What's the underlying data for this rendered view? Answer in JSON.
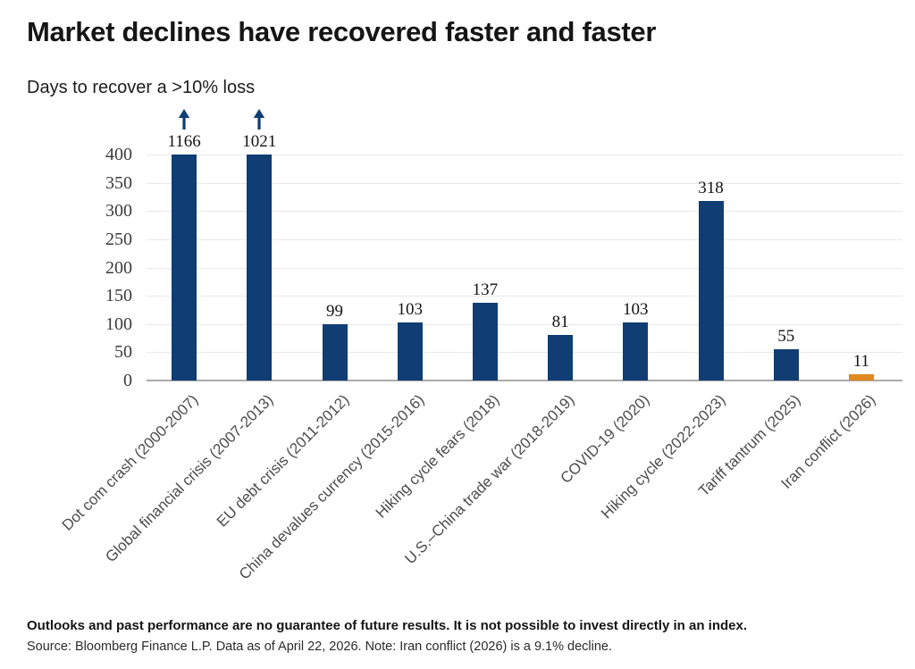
{
  "header": {
    "title": "Market declines have recovered faster and faster",
    "subtitle": "Days to recover a >10% loss"
  },
  "chart_data": {
    "type": "bar",
    "title": "Market declines have recovered faster and faster",
    "subtitle": "Days to recover a >10% loss",
    "categories": [
      "Dot com crash (2000-2007)",
      "Global financial crisis (2007-2013)",
      "EU debt crisis (2011-2012)",
      "China devalues currency (2015-2016)",
      "Hiking cycle fears (2018)",
      "U.S.–China trade war (2018-2019)",
      "COVID-19 (2020)",
      "Hiking cycle (2022-2023)",
      "Tariff tantrum (2025)",
      "Iran conflict (2026)"
    ],
    "values": [
      1166,
      1021,
      99,
      103,
      137,
      81,
      103,
      318,
      55,
      11
    ],
    "xlabel": "",
    "ylabel": "",
    "ylim": [
      0,
      400
    ],
    "yticks": [
      0,
      50,
      100,
      150,
      200,
      250,
      300,
      350,
      400
    ],
    "grid": true,
    "legend": "none",
    "bar_color": "#103d73",
    "highlight_color": "#e0891e",
    "highlight_index": 9,
    "overflow_arrow_indices": [
      0,
      1
    ],
    "overflow_note": "Bars for values above 400 are clipped at the axis top and marked with an up arrow"
  },
  "footer": {
    "disclaimer": "Outlooks and past performance are no guarantee of future results. It is not possible to invest directly in an index.",
    "source": "Source: Bloomberg Finance L.P. Data as of April 22, 2026. Note: Iran conflict (2026) is a 9.1% decline."
  }
}
